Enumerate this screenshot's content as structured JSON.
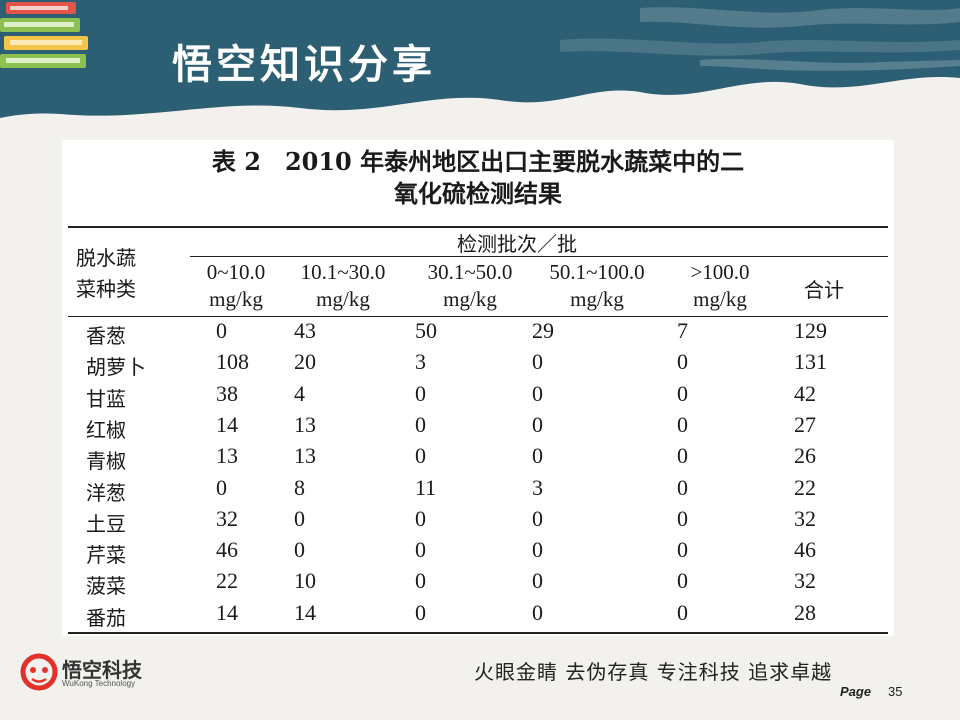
{
  "header": {
    "title": "悟空知识分享"
  },
  "table": {
    "caption_line1": "表 2　2010 年泰州地区出口主要脱水蔬菜中的二",
    "caption_line2": "氧化硫检测结果",
    "row_header_line1": "脱水蔬",
    "row_header_line2": "菜种类",
    "group_header": "检测批次／批",
    "columns": [
      {
        "range": "0~10.0",
        "unit": "mg/kg"
      },
      {
        "range": "10.1~30.0",
        "unit": "mg/kg"
      },
      {
        "range": "30.1~50.0",
        "unit": "mg/kg"
      },
      {
        "range": "50.1~100.0",
        "unit": "mg/kg"
      },
      {
        "range": ">100.0",
        "unit": "mg/kg"
      }
    ],
    "total_header": "合计",
    "rows": [
      {
        "name": "香葱",
        "values": [
          "0",
          "43",
          "50",
          "29",
          "7",
          "129"
        ]
      },
      {
        "name": "胡萝卜",
        "values": [
          "108",
          "20",
          "3",
          "0",
          "0",
          "131"
        ]
      },
      {
        "name": "甘蓝",
        "values": [
          "38",
          "4",
          "0",
          "0",
          "0",
          "42"
        ]
      },
      {
        "name": "红椒",
        "values": [
          "14",
          "13",
          "0",
          "0",
          "0",
          "27"
        ]
      },
      {
        "name": "青椒",
        "values": [
          "13",
          "13",
          "0",
          "0",
          "0",
          "26"
        ]
      },
      {
        "name": "洋葱",
        "values": [
          "0",
          "8",
          "11",
          "3",
          "0",
          "22"
        ]
      },
      {
        "name": "土豆",
        "values": [
          "32",
          "0",
          "0",
          "0",
          "0",
          "32"
        ]
      },
      {
        "name": "芹菜",
        "values": [
          "46",
          "0",
          "0",
          "0",
          "0",
          "46"
        ]
      },
      {
        "name": "菠菜",
        "values": [
          "22",
          "10",
          "0",
          "0",
          "0",
          "32"
        ]
      },
      {
        "name": "番茄",
        "values": [
          "14",
          "14",
          "0",
          "0",
          "0",
          "28"
        ]
      }
    ]
  },
  "footer": {
    "logo_name": "悟空科技",
    "logo_sub": "WuKong Technology",
    "slogan": "火眼金睛 去伪存真 专注科技 追求卓越",
    "page_label": "Page",
    "page_number": "35"
  },
  "colors": {
    "banner": "#2c5f73",
    "book_red": "#e2554a",
    "book_green": "#8cc152",
    "book_yellow": "#f5c54a",
    "logo_red": "#e0312c"
  }
}
